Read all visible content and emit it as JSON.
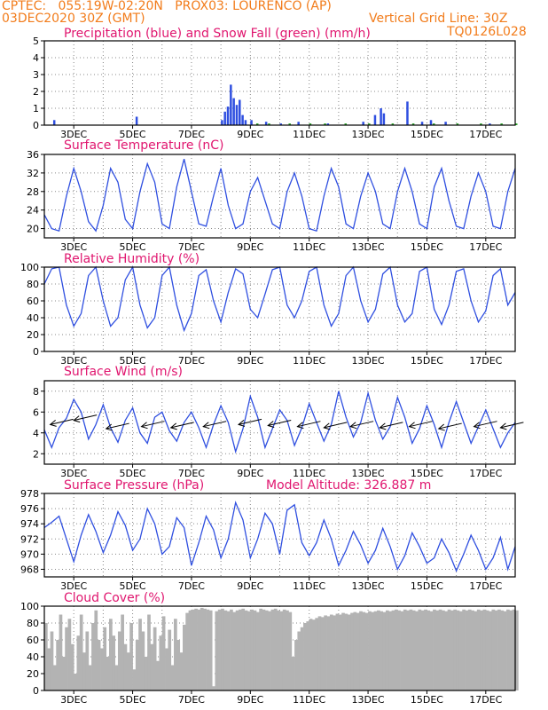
{
  "header": {
    "line1": "CPTEC:   055:19W-02:20N   PROX03: LOURENCO (AP)",
    "date": "03DEC2020 30Z (GMT)",
    "grid_note": "Vertical Grid Line: 30Z",
    "code": "TQ0126L028"
  },
  "colors": {
    "header": "#f27c1b",
    "title": "#e0166f",
    "series": "#2f4fe0",
    "snow": "#2aa52a",
    "cloud": "#b3b3b3",
    "wind_arrow": "#000000"
  },
  "x_ticks": [
    "3DEC",
    "5DEC",
    "7DEC",
    "9DEC",
    "11DEC",
    "13DEC",
    "15DEC",
    "17DEC"
  ],
  "chart_data": [
    {
      "id": "precip",
      "type": "bar",
      "title": "Precipitation (blue) and Snow Fall (green) (mm/h)",
      "ylim": [
        0,
        5
      ],
      "yticks": [
        0,
        1,
        2,
        3,
        4,
        5
      ],
      "series": [
        {
          "name": "Precipitation",
          "x": [
            2.3,
            5.1,
            8.0,
            8.1,
            8.2,
            8.3,
            8.4,
            8.5,
            8.6,
            8.7,
            8.8,
            9.0,
            9.5,
            10.0,
            10.6,
            11.6,
            12.8,
            13.2,
            13.4,
            13.5,
            14.3,
            14.8,
            15.1,
            15.6,
            17.1
          ],
          "values": [
            0.3,
            0.5,
            0.3,
            0.8,
            1.1,
            2.4,
            1.6,
            1.2,
            1.5,
            0.6,
            0.3,
            0.3,
            0.2,
            0.1,
            0.2,
            0.1,
            0.2,
            0.6,
            1.0,
            0.7,
            1.4,
            0.2,
            0.3,
            0.2,
            0.1
          ]
        },
        {
          "name": "Snow Fall",
          "x": [
            9.2,
            9.6,
            10.3,
            11.0,
            11.5,
            12.2,
            13.0,
            13.8,
            14.5,
            15.2,
            16.0,
            16.8,
            17.5,
            18.0
          ],
          "values": [
            0.1,
            0.1,
            0.1,
            0.1,
            0.1,
            0.1,
            0.1,
            0.1,
            0.1,
            0.1,
            0.1,
            0.1,
            0.1,
            0.1
          ]
        }
      ]
    },
    {
      "id": "temp",
      "type": "line",
      "title": "Surface Temperature (nC)",
      "ylim": [
        18,
        36
      ],
      "yticks": [
        20,
        24,
        28,
        32,
        36
      ],
      "x": [
        2.0,
        2.25,
        2.5,
        2.75,
        3.0,
        3.25,
        3.5,
        3.75,
        4.0,
        4.25,
        4.5,
        4.75,
        5.0,
        5.25,
        5.5,
        5.75,
        6.0,
        6.25,
        6.5,
        6.75,
        7.0,
        7.25,
        7.5,
        7.75,
        8.0,
        8.25,
        8.5,
        8.75,
        9.0,
        9.25,
        9.5,
        9.75,
        10.0,
        10.25,
        10.5,
        10.75,
        11.0,
        11.25,
        11.5,
        11.75,
        12.0,
        12.25,
        12.5,
        12.75,
        13.0,
        13.25,
        13.5,
        13.75,
        14.0,
        14.25,
        14.5,
        14.75,
        15.0,
        15.25,
        15.5,
        15.75,
        16.0,
        16.25,
        16.5,
        16.75,
        17.0,
        17.25,
        17.5,
        17.75,
        18.0
      ],
      "series": [
        {
          "values": [
            23,
            20,
            19.5,
            27,
            33,
            28,
            21.5,
            19.5,
            25,
            33,
            30,
            22,
            20,
            28,
            34,
            30,
            21,
            20,
            29,
            35,
            28,
            21,
            20.5,
            27,
            33,
            25,
            20,
            21,
            28,
            31,
            26,
            21,
            20,
            28,
            32,
            27,
            20,
            19.5,
            27,
            33,
            29,
            21,
            20,
            27,
            32,
            28,
            21,
            20,
            28,
            33,
            28,
            21,
            20,
            29,
            33,
            26,
            20.5,
            20,
            27,
            32,
            28,
            20.5,
            20,
            28,
            33
          ]
        }
      ]
    },
    {
      "id": "rh",
      "type": "line",
      "title": "Relative Humidity (%)",
      "ylim": [
        0,
        100
      ],
      "yticks": [
        0,
        20,
        40,
        60,
        80,
        100
      ],
      "x": [
        2.0,
        2.25,
        2.5,
        2.75,
        3.0,
        3.25,
        3.5,
        3.75,
        4.0,
        4.25,
        4.5,
        4.75,
        5.0,
        5.25,
        5.5,
        5.75,
        6.0,
        6.25,
        6.5,
        6.75,
        7.0,
        7.25,
        7.5,
        7.75,
        8.0,
        8.25,
        8.5,
        8.75,
        9.0,
        9.25,
        9.5,
        9.75,
        10.0,
        10.25,
        10.5,
        10.75,
        11.0,
        11.25,
        11.5,
        11.75,
        12.0,
        12.25,
        12.5,
        12.75,
        13.0,
        13.25,
        13.5,
        13.75,
        14.0,
        14.25,
        14.5,
        14.75,
        15.0,
        15.25,
        15.5,
        15.75,
        16.0,
        16.25,
        16.5,
        16.75,
        17.0,
        17.25,
        17.5,
        17.75,
        18.0
      ],
      "series": [
        {
          "values": [
            80,
            98,
            100,
            55,
            30,
            45,
            90,
            100,
            60,
            30,
            40,
            85,
            100,
            55,
            28,
            40,
            90,
            100,
            55,
            25,
            45,
            90,
            97,
            60,
            35,
            70,
            98,
            92,
            50,
            40,
            68,
            97,
            100,
            55,
            40,
            60,
            95,
            100,
            55,
            30,
            45,
            90,
            100,
            60,
            35,
            50,
            92,
            100,
            55,
            35,
            45,
            95,
            100,
            50,
            32,
            55,
            95,
            98,
            60,
            35,
            48,
            90,
            98,
            55,
            70
          ]
        }
      ]
    },
    {
      "id": "wind",
      "type": "line",
      "title": "Surface Wind (m/s)",
      "ylim": [
        1,
        9
      ],
      "yticks": [
        2,
        4,
        6,
        8
      ],
      "x": [
        2.0,
        2.25,
        2.5,
        2.75,
        3.0,
        3.25,
        3.5,
        3.75,
        4.0,
        4.25,
        4.5,
        4.75,
        5.0,
        5.25,
        5.5,
        5.75,
        6.0,
        6.25,
        6.5,
        6.75,
        7.0,
        7.25,
        7.5,
        7.75,
        8.0,
        8.25,
        8.5,
        8.75,
        9.0,
        9.25,
        9.5,
        9.75,
        10.0,
        10.25,
        10.5,
        10.75,
        11.0,
        11.25,
        11.5,
        11.75,
        12.0,
        12.25,
        12.5,
        12.75,
        13.0,
        13.25,
        13.5,
        13.75,
        14.0,
        14.25,
        14.5,
        14.75,
        15.0,
        15.25,
        15.5,
        15.75,
        16.0,
        16.25,
        16.5,
        16.75,
        17.0,
        17.25,
        17.5,
        17.75,
        18.0
      ],
      "series": [
        {
          "values": [
            4.3,
            2.6,
            4.5,
            5.4,
            7.2,
            6.0,
            3.4,
            4.8,
            6.7,
            4.5,
            3.1,
            5.2,
            6.4,
            4.0,
            3.0,
            5.5,
            6.0,
            4.2,
            3.2,
            5.0,
            6.0,
            4.5,
            2.6,
            4.8,
            6.6,
            5.0,
            2.2,
            4.4,
            7.5,
            5.5,
            2.6,
            4.4,
            6.2,
            5.2,
            2.8,
            4.5,
            6.8,
            5.0,
            3.2,
            4.8,
            8.0,
            5.5,
            3.6,
            5.0,
            7.8,
            5.2,
            3.4,
            4.6,
            7.4,
            5.5,
            3.0,
            4.4,
            6.6,
            4.8,
            2.6,
            5.0,
            7.0,
            5.0,
            3.0,
            4.6,
            6.2,
            4.4,
            2.6,
            4.0,
            5.0
          ]
        }
      ],
      "arrows": {
        "x": [
          2.2,
          3.0,
          4.1,
          5.3,
          6.3,
          7.4,
          8.6,
          9.6,
          10.6,
          11.5,
          12.4,
          13.4,
          14.4,
          15.4,
          16.6,
          17.5
        ],
        "speed": [
          4.8,
          5.2,
          4.4,
          4.6,
          4.5,
          4.6,
          4.8,
          4.7,
          4.6,
          4.5,
          4.6,
          4.5,
          4.6,
          4.4,
          4.6,
          4.5
        ]
      }
    },
    {
      "id": "press",
      "type": "line",
      "title": "Surface Pressure (hPa)",
      "subtitle": "Model Altitude: 326.887  m",
      "ylim": [
        967,
        978
      ],
      "yticks": [
        968,
        970,
        972,
        974,
        976,
        978
      ],
      "x": [
        2.0,
        2.25,
        2.5,
        2.75,
        3.0,
        3.25,
        3.5,
        3.75,
        4.0,
        4.25,
        4.5,
        4.75,
        5.0,
        5.25,
        5.5,
        5.75,
        6.0,
        6.25,
        6.5,
        6.75,
        7.0,
        7.25,
        7.5,
        7.75,
        8.0,
        8.25,
        8.5,
        8.75,
        9.0,
        9.25,
        9.5,
        9.75,
        10.0,
        10.25,
        10.5,
        10.75,
        11.0,
        11.25,
        11.5,
        11.75,
        12.0,
        12.25,
        12.5,
        12.75,
        13.0,
        13.25,
        13.5,
        13.75,
        14.0,
        14.25,
        14.5,
        14.75,
        15.0,
        15.25,
        15.5,
        15.75,
        16.0,
        16.25,
        16.5,
        16.75,
        17.0,
        17.25,
        17.5,
        17.75,
        18.0
      ],
      "series": [
        {
          "values": [
            973.5,
            974.2,
            975.0,
            972.0,
            969.0,
            972.5,
            975.2,
            973.0,
            970.2,
            972.5,
            975.6,
            973.8,
            970.5,
            972.0,
            976.0,
            974.0,
            970.0,
            971.0,
            974.8,
            973.5,
            968.5,
            971.5,
            975.0,
            973.2,
            969.5,
            972.0,
            976.8,
            974.5,
            969.5,
            972.0,
            975.4,
            974.0,
            970.0,
            975.8,
            976.5,
            971.5,
            969.8,
            971.5,
            974.5,
            972.0,
            968.5,
            970.5,
            973.0,
            971.2,
            968.8,
            970.5,
            973.4,
            971.0,
            968.0,
            969.8,
            972.8,
            971.0,
            968.8,
            969.5,
            972.0,
            970.2,
            967.8,
            970.0,
            972.5,
            970.5,
            968.0,
            969.5,
            972.2,
            968.0,
            971.0
          ]
        }
      ]
    },
    {
      "id": "cloud",
      "type": "bar",
      "title": "Cloud Cover (%)",
      "ylim": [
        0,
        100
      ],
      "yticks": [
        0,
        20,
        40,
        60,
        80,
        100
      ],
      "series": [
        {
          "x_start": 2.0,
          "x_step": 0.1,
          "values": [
            80,
            50,
            70,
            30,
            60,
            90,
            40,
            75,
            85,
            55,
            20,
            65,
            90,
            45,
            70,
            30,
            80,
            95,
            60,
            50,
            75,
            40,
            85,
            65,
            30,
            70,
            90,
            55,
            45,
            80,
            25,
            60,
            85,
            70,
            40,
            90,
            55,
            75,
            35,
            65,
            88,
            50,
            72,
            30,
            85,
            60,
            45,
            78,
            92,
            95,
            96,
            97,
            96,
            98,
            97,
            96,
            95,
            5,
            94,
            96,
            97,
            95,
            94,
            96,
            93,
            95,
            96,
            97,
            95,
            94,
            96,
            95,
            93,
            97,
            96,
            95,
            94,
            96,
            97,
            95,
            94,
            96,
            95,
            93,
            40,
            60,
            70,
            75,
            80,
            82,
            85,
            84,
            86,
            88,
            87,
            89,
            88,
            90,
            89,
            91,
            90,
            92,
            91,
            90,
            92,
            93,
            92,
            94,
            93,
            92,
            94,
            93,
            94,
            95,
            94,
            93,
            95,
            94,
            95,
            96,
            95,
            94,
            96,
            95,
            96,
            95,
            94,
            96,
            95,
            96,
            95,
            94,
            96,
            95,
            96,
            95,
            94,
            96,
            95,
            96,
            95,
            94,
            96,
            95,
            96,
            95,
            94,
            96,
            95,
            96,
            95,
            94,
            96,
            95,
            96,
            95,
            94,
            96,
            95,
            96,
            95
          ]
        }
      ]
    }
  ]
}
